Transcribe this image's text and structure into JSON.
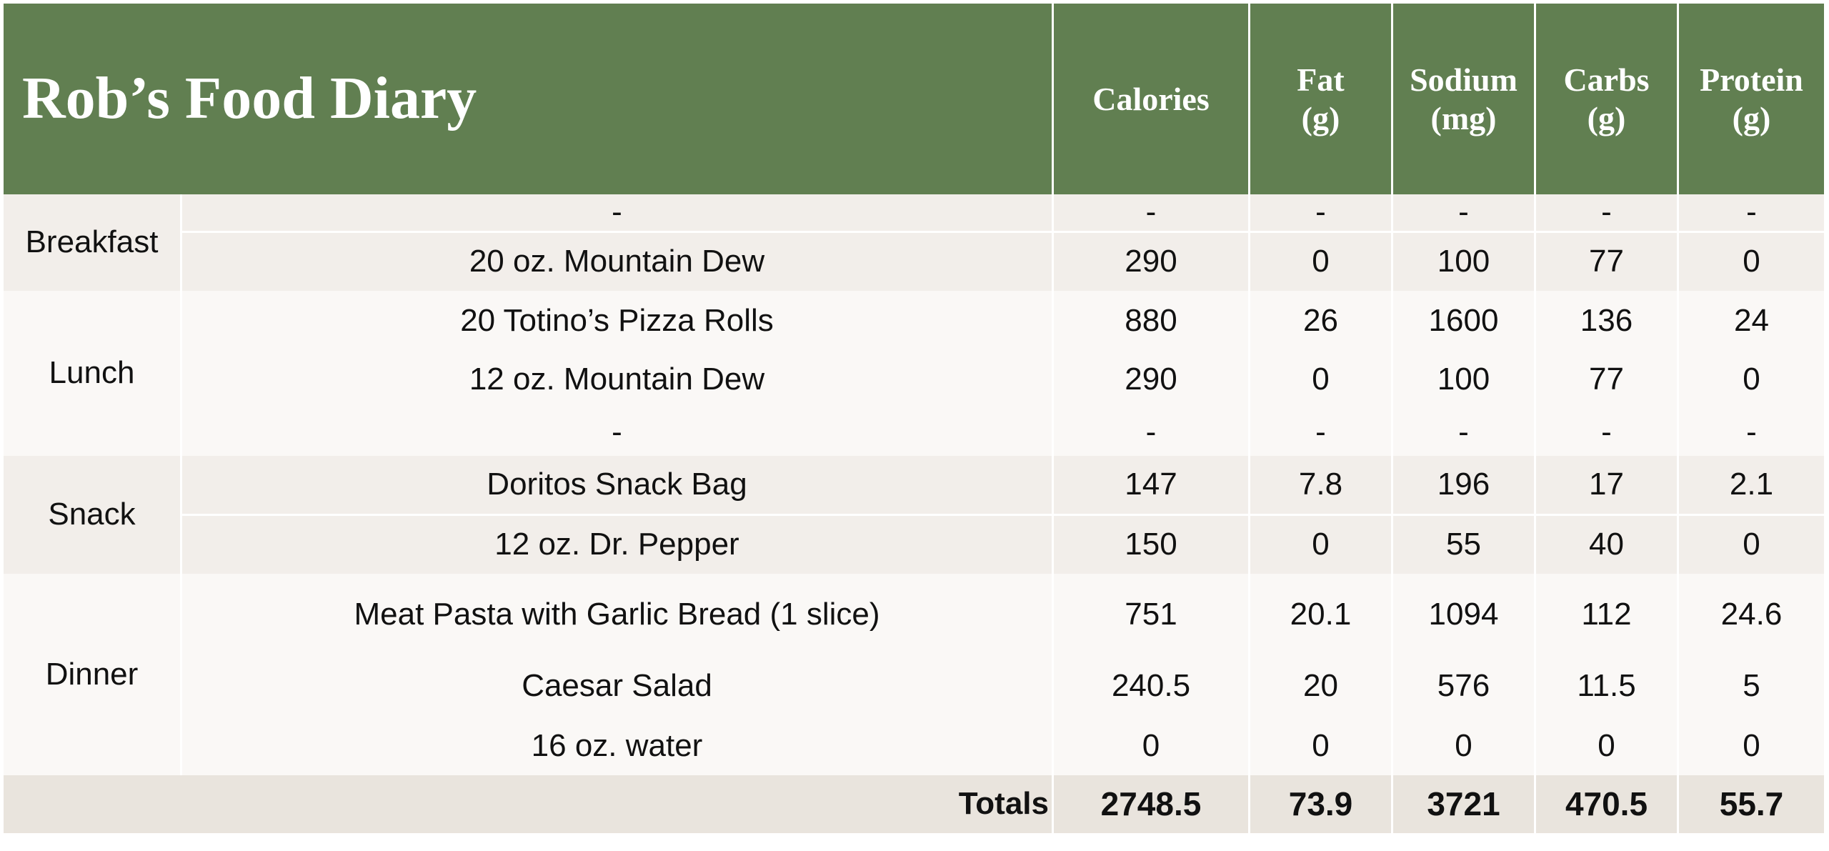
{
  "title": "Rob’s Food Diary",
  "columns": [
    "Calories",
    "Fat\n(g)",
    "Sodium\n(mg)",
    "Carbs\n(g)",
    "Protein\n(g)"
  ],
  "meals": [
    {
      "name": "Breakfast",
      "items": [
        {
          "food": "-",
          "values": [
            "-",
            "-",
            "-",
            "-",
            "-"
          ]
        },
        {
          "food": "20 oz. Mountain Dew",
          "values": [
            "290",
            "0",
            "100",
            "77",
            "0"
          ]
        }
      ]
    },
    {
      "name": "Lunch",
      "items": [
        {
          "food": "20 Totino’s Pizza Rolls",
          "values": [
            "880",
            "26",
            "1600",
            "136",
            "24"
          ]
        },
        {
          "food": "12 oz. Mountain Dew",
          "values": [
            "290",
            "0",
            "100",
            "77",
            "0"
          ]
        },
        {
          "food": "-",
          "values": [
            "-",
            "-",
            "-",
            "-",
            "-"
          ]
        }
      ]
    },
    {
      "name": "Snack",
      "items": [
        {
          "food": "Doritos Snack Bag",
          "values": [
            "147",
            "7.8",
            "196",
            "17",
            "2.1"
          ]
        },
        {
          "food": "12 oz. Dr. Pepper",
          "values": [
            "150",
            "0",
            "55",
            "40",
            "0"
          ]
        }
      ]
    },
    {
      "name": "Dinner",
      "items": [
        {
          "food": "Meat Pasta with Garlic Bread (1 slice)",
          "values": [
            "751",
            "20.1",
            "1094",
            "112",
            "24.6"
          ]
        },
        {
          "food": "Caesar Salad",
          "values": [
            "240.5",
            "20",
            "576",
            "11.5",
            "5"
          ]
        },
        {
          "food": "16 oz. water",
          "values": [
            "0",
            "0",
            "0",
            "0",
            "0"
          ]
        }
      ]
    }
  ],
  "totals": {
    "label": "Totals",
    "values": [
      "2748.5",
      "73.9",
      "3721",
      "470.5",
      "55.7"
    ]
  },
  "colors": {
    "header_green": "#617f51",
    "row_shade": "#f2eeea",
    "row_light": "#faf8f6",
    "totals_bg": "#e9e4dd"
  }
}
